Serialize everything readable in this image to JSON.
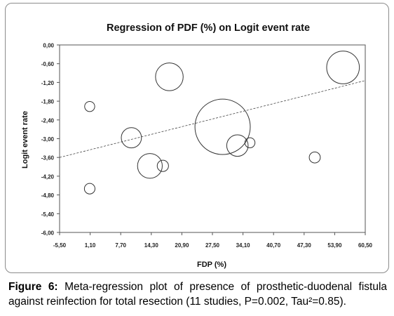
{
  "chart_data": {
    "type": "scatter",
    "title": "Regression of PDF (%) on Logit event rate",
    "xlabel": "FDP (%)",
    "ylabel": "Logit event rate",
    "x_ticks": [
      "-5,50",
      "1,10",
      "7,70",
      "14,30",
      "20,90",
      "27,50",
      "34,10",
      "40,70",
      "47,30",
      "53,90",
      "60,50"
    ],
    "y_ticks": [
      "0,00",
      "-0,60",
      "-1,20",
      "-1,80",
      "-2,40",
      "-3,00",
      "-3,60",
      "-4,20",
      "-4,80",
      "-5,40",
      "-6,00"
    ],
    "xlim": [
      -5.5,
      60.5
    ],
    "ylim": [
      -6.0,
      0.0
    ],
    "grid": false,
    "points": [
      {
        "x": 1.0,
        "y": -1.97,
        "size": 2.0
      },
      {
        "x": 1.0,
        "y": -4.6,
        "size": 2.2
      },
      {
        "x": 10.0,
        "y": -2.97,
        "size": 8.0
      },
      {
        "x": 14.0,
        "y": -3.87,
        "size": 12.0
      },
      {
        "x": 16.8,
        "y": -3.87,
        "size": 2.5
      },
      {
        "x": 18.2,
        "y": -1.02,
        "size": 15.0
      },
      {
        "x": 29.7,
        "y": -2.62,
        "size": 60.0
      },
      {
        "x": 32.9,
        "y": -3.22,
        "size": 9.0
      },
      {
        "x": 35.6,
        "y": -3.13,
        "size": 2.0
      },
      {
        "x": 49.6,
        "y": -3.6,
        "size": 2.4
      },
      {
        "x": 55.7,
        "y": -0.72,
        "size": 21.0
      }
    ],
    "regression_line": {
      "x": [
        -5.5,
        60.5
      ],
      "y": [
        -3.6,
        -1.14
      ]
    }
  },
  "caption": {
    "label": "Figure 6:",
    "text": "Meta-regression plot of presence of prosthetic-duodenal fistula against reinfection for total resection (11 studies, P=0.002, Tau²=0.85)."
  }
}
